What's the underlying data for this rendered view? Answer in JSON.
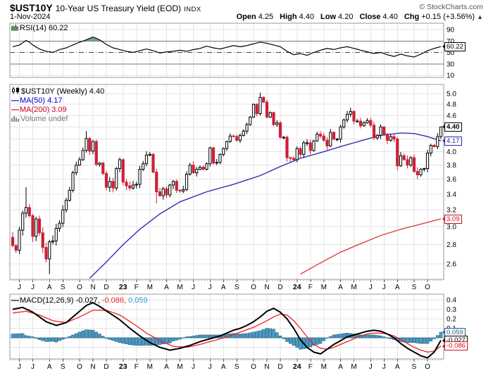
{
  "header": {
    "symbol": "$UST10Y",
    "title": "10-Year US Treasury Yield (EOD)",
    "exchange": "INDX",
    "copyright": "© StockCharts.com",
    "date": "1-Nov-2024",
    "quote": {
      "open_label": "Open",
      "open": "4.25",
      "high_label": "High",
      "high": "4.40",
      "low_label": "Low",
      "low": "4.20",
      "close_label": "Close",
      "close": "4.40",
      "chg_label": "Chg",
      "chg": "+0.15 (+3.56%)",
      "chg_arrow": "▲"
    }
  },
  "rsi_pane": {
    "legend": "RSI(14) 60.22",
    "last_value": "60.22",
    "ticks": [
      90,
      70,
      50,
      30,
      10
    ],
    "overbought": 70,
    "midline": 50,
    "oversold": 30
  },
  "main_pane": {
    "legend_symbol": "$UST10Y (Weekly) 4.40",
    "legend_ma50": "MA(50) 4.17",
    "legend_ma200": "MA(200) 3.09",
    "legend_volume": "Volume undef",
    "box_last": "4.40",
    "box_ma50": "4.17",
    "box_ma200": "3.09",
    "tick_labels": [
      5.0,
      4.8,
      4.6,
      4.0,
      3.8,
      3.6,
      3.4,
      3.2,
      3.0,
      2.8,
      2.6
    ],
    "grid_min": 2.6,
    "grid_max": 5.0,
    "grid_step": 0.2
  },
  "macd_pane": {
    "legend_name": "MACD(12,26,9)",
    "legend_macd": "-0.027,",
    "legend_signal": "-0.086,",
    "legend_hist": "0.059",
    "box_hist": "0.059",
    "box_macd": "-0.027",
    "box_signal": "-0.086",
    "ticks": [
      0.4,
      0.3,
      0.2,
      0.1
    ]
  },
  "x_axis": {
    "months": [
      {
        "label": "J",
        "week": 2
      },
      {
        "label": "J",
        "week": 6
      },
      {
        "label": "A",
        "week": 11
      },
      {
        "label": "S",
        "week": 15
      },
      {
        "label": "O",
        "week": 20
      },
      {
        "label": "N",
        "week": 24
      },
      {
        "label": "D",
        "week": 28
      },
      {
        "label": "23",
        "week": 33,
        "year": true
      },
      {
        "label": "F",
        "week": 37
      },
      {
        "label": "M",
        "week": 41
      },
      {
        "label": "A",
        "week": 46
      },
      {
        "label": "M",
        "week": 50
      },
      {
        "label": "J",
        "week": 54
      },
      {
        "label": "J",
        "week": 59
      },
      {
        "label": "A",
        "week": 63
      },
      {
        "label": "S",
        "week": 67
      },
      {
        "label": "O",
        "week": 72
      },
      {
        "label": "N",
        "week": 76
      },
      {
        "label": "D",
        "week": 80
      },
      {
        "label": "24",
        "week": 85,
        "year": true
      },
      {
        "label": "F",
        "week": 89
      },
      {
        "label": "M",
        "week": 93
      },
      {
        "label": "A",
        "week": 98
      },
      {
        "label": "M",
        "week": 102
      },
      {
        "label": "J",
        "week": 107
      },
      {
        "label": "J",
        "week": 111
      },
      {
        "label": "A",
        "week": 115
      },
      {
        "label": "S",
        "week": 120
      },
      {
        "label": "O",
        "week": 124
      }
    ]
  },
  "colors": {
    "up_candle": "#ffffff",
    "up_outline": "#000000",
    "down_candle": "#cc2039",
    "ma50": "#3030b0",
    "ma200": "#dd4450",
    "macd_line": "#000000",
    "signal_line": "#ee2222",
    "hist_fill": "#4f9bc2",
    "hist_stroke": "#1b5f86",
    "rsi_line": "#000000",
    "rsi_fill": "#7da283",
    "legend_blue": "#0000cc",
    "legend_red": "#cc0022",
    "legend_hist_blue": "#2f9ad4",
    "grid": "#e4e4e4",
    "grid_strong": "#777777",
    "pane_border": "#999999",
    "arrow_green": "#006600",
    "gray_text": "#777777"
  },
  "chart_data": {
    "type": "candlestick",
    "title": "$UST10Y 10-Year US Treasury Yield (EOD) — Weekly with RSI(14), MA(50), MA(200), MACD(12,26,9)",
    "x_range": "May 2022 – Nov 2024 (weekly)",
    "y_scale": "log",
    "y_axis": {
      "top_value": 5.18,
      "bottom_value": 2.45
    },
    "last_bar": {
      "open": 4.25,
      "high": 4.4,
      "low": 4.2,
      "close": 4.4,
      "change": "+0.15 (+3.56%)"
    },
    "first_open": 2.88,
    "weekly_closes": [
      2.79,
      2.74,
      2.96,
      3.16,
      3.23,
      3.13,
      2.89,
      3.09,
      2.93,
      2.77,
      2.65,
      2.83,
      2.84,
      2.98,
      3.04,
      3.2,
      3.32,
      3.45,
      3.69,
      3.8,
      3.88,
      4.02,
      4.21,
      4.01,
      4.16,
      3.81,
      3.83,
      3.68,
      3.49,
      3.57,
      3.48,
      3.75,
      3.88,
      3.56,
      3.51,
      3.48,
      3.52,
      3.53,
      3.74,
      3.82,
      3.95,
      3.96,
      3.7,
      3.43,
      3.38,
      3.47,
      3.39,
      3.52,
      3.57,
      3.45,
      3.44,
      3.46,
      3.67,
      3.8,
      3.69,
      3.74,
      3.77,
      3.74,
      3.82,
      4.06,
      3.83,
      3.84,
      3.96,
      4.05,
      4.16,
      4.25,
      4.24,
      4.18,
      4.26,
      4.33,
      4.44,
      4.57,
      4.8,
      4.63,
      4.93,
      4.84,
      4.57,
      4.65,
      4.44,
      4.47,
      4.23,
      4.23,
      3.91,
      3.9,
      3.88,
      4.05,
      3.96,
      4.14,
      4.14,
      4.02,
      4.17,
      4.28,
      4.25,
      4.18,
      4.09,
      4.31,
      4.2,
      4.2,
      4.4,
      4.52,
      4.62,
      4.67,
      4.5,
      4.5,
      4.42,
      4.47,
      4.51,
      4.43,
      4.22,
      4.26,
      4.4,
      4.28,
      4.18,
      4.24,
      4.2,
      3.79,
      3.94,
      3.88,
      3.8,
      3.91,
      3.71,
      3.66,
      3.74,
      3.75,
      3.98,
      4.1,
      4.08,
      4.24,
      4.4
    ],
    "hl_overrides": {
      "4": {
        "h": 3.49
      },
      "11": {
        "l": 2.5
      },
      "22": {
        "h": 4.33
      },
      "43": {
        "l": 3.28
      },
      "74": {
        "h": 5.02
      },
      "101": {
        "h": 4.74
      },
      "121": {
        "l": 3.6
      },
      "128": {
        "h": 4.4,
        "l": 4.2
      }
    },
    "ma50": [
      [
        23,
        2.46
      ],
      [
        28,
        2.62
      ],
      [
        33,
        2.8
      ],
      [
        38,
        2.97
      ],
      [
        44,
        3.15
      ],
      [
        50,
        3.3
      ],
      [
        58,
        3.43
      ],
      [
        66,
        3.53
      ],
      [
        74,
        3.65
      ],
      [
        80,
        3.78
      ],
      [
        86,
        3.9
      ],
      [
        93,
        4.0
      ],
      [
        98,
        4.08
      ],
      [
        104,
        4.17
      ],
      [
        110,
        4.26
      ],
      [
        116,
        4.3
      ],
      [
        120,
        4.29
      ],
      [
        124,
        4.24
      ],
      [
        128,
        4.17
      ]
    ],
    "ma200": [
      [
        86,
        2.5
      ],
      [
        92,
        2.61
      ],
      [
        98,
        2.72
      ],
      [
        104,
        2.81
      ],
      [
        110,
        2.9
      ],
      [
        116,
        2.97
      ],
      [
        122,
        3.03
      ],
      [
        128,
        3.09
      ]
    ],
    "rsi": [
      [
        0,
        60
      ],
      [
        2,
        63
      ],
      [
        4,
        71
      ],
      [
        5,
        68
      ],
      [
        6,
        63
      ],
      [
        8,
        56
      ],
      [
        10,
        52
      ],
      [
        12,
        50
      ],
      [
        14,
        55
      ],
      [
        16,
        58
      ],
      [
        18,
        63
      ],
      [
        20,
        68
      ],
      [
        22,
        72
      ],
      [
        24,
        77
      ],
      [
        26,
        72
      ],
      [
        28,
        64
      ],
      [
        30,
        58
      ],
      [
        32,
        55
      ],
      [
        34,
        52
      ],
      [
        36,
        50
      ],
      [
        38,
        53
      ],
      [
        40,
        56
      ],
      [
        42,
        53
      ],
      [
        44,
        49
      ],
      [
        46,
        51
      ],
      [
        48,
        52
      ],
      [
        50,
        54
      ],
      [
        52,
        52
      ],
      [
        54,
        55
      ],
      [
        56,
        57
      ],
      [
        58,
        61
      ],
      [
        60,
        58
      ],
      [
        62,
        56
      ],
      [
        64,
        59
      ],
      [
        66,
        62
      ],
      [
        68,
        60
      ],
      [
        70,
        62
      ],
      [
        72,
        65
      ],
      [
        74,
        68
      ],
      [
        76,
        66
      ],
      [
        78,
        63
      ],
      [
        80,
        60
      ],
      [
        82,
        52
      ],
      [
        84,
        46
      ],
      [
        86,
        48
      ],
      [
        88,
        45
      ],
      [
        90,
        50
      ],
      [
        92,
        54
      ],
      [
        94,
        57
      ],
      [
        96,
        55
      ],
      [
        98,
        58
      ],
      [
        100,
        60
      ],
      [
        102,
        57
      ],
      [
        104,
        54
      ],
      [
        106,
        51
      ],
      [
        108,
        48
      ],
      [
        110,
        50
      ],
      [
        112,
        46
      ],
      [
        114,
        43
      ],
      [
        116,
        47
      ],
      [
        118,
        44
      ],
      [
        120,
        42
      ],
      [
        122,
        47
      ],
      [
        124,
        53
      ],
      [
        126,
        57
      ],
      [
        128,
        60.22
      ]
    ],
    "macd_line": [
      [
        0,
        0.3
      ],
      [
        3,
        0.32
      ],
      [
        6,
        0.27
      ],
      [
        10,
        0.17
      ],
      [
        13,
        0.13
      ],
      [
        16,
        0.16
      ],
      [
        19,
        0.25
      ],
      [
        22,
        0.34
      ],
      [
        24,
        0.37
      ],
      [
        26,
        0.33
      ],
      [
        29,
        0.26
      ],
      [
        32,
        0.19
      ],
      [
        35,
        0.1
      ],
      [
        38,
        0.02
      ],
      [
        41,
        -0.05
      ],
      [
        44,
        -0.1
      ],
      [
        47,
        -0.13
      ],
      [
        50,
        -0.11
      ],
      [
        53,
        -0.08
      ],
      [
        56,
        -0.04
      ],
      [
        58,
        -0.02
      ],
      [
        60,
        0.0
      ],
      [
        62,
        0.02
      ],
      [
        64,
        0.05
      ],
      [
        66,
        0.08
      ],
      [
        68,
        0.1
      ],
      [
        70,
        0.13
      ],
      [
        72,
        0.17
      ],
      [
        74,
        0.22
      ],
      [
        76,
        0.28
      ],
      [
        78,
        0.31
      ],
      [
        80,
        0.27
      ],
      [
        82,
        0.2
      ],
      [
        84,
        0.1
      ],
      [
        86,
        -0.02
      ],
      [
        88,
        -0.1
      ],
      [
        90,
        -0.15
      ],
      [
        92,
        -0.17
      ],
      [
        94,
        -0.12
      ],
      [
        96,
        -0.07
      ],
      [
        98,
        -0.03
      ],
      [
        100,
        0.01
      ],
      [
        102,
        0.03
      ],
      [
        104,
        0.05
      ],
      [
        106,
        0.07
      ],
      [
        108,
        0.08
      ],
      [
        110,
        0.07
      ],
      [
        112,
        0.04
      ],
      [
        114,
        0.0
      ],
      [
        116,
        -0.06
      ],
      [
        118,
        -0.11
      ],
      [
        120,
        -0.15
      ],
      [
        122,
        -0.19
      ],
      [
        124,
        -0.21
      ],
      [
        126,
        -0.15
      ],
      [
        128,
        -0.027
      ]
    ],
    "signal_line": [
      [
        0,
        0.26
      ],
      [
        4,
        0.28
      ],
      [
        8,
        0.24
      ],
      [
        12,
        0.18
      ],
      [
        16,
        0.16
      ],
      [
        20,
        0.22
      ],
      [
        24,
        0.29
      ],
      [
        28,
        0.29
      ],
      [
        32,
        0.24
      ],
      [
        36,
        0.15
      ],
      [
        40,
        0.05
      ],
      [
        44,
        -0.03
      ],
      [
        48,
        -0.09
      ],
      [
        52,
        -0.1
      ],
      [
        56,
        -0.07
      ],
      [
        60,
        -0.03
      ],
      [
        64,
        0.01
      ],
      [
        68,
        0.06
      ],
      [
        72,
        0.11
      ],
      [
        76,
        0.18
      ],
      [
        78,
        0.22
      ],
      [
        80,
        0.25
      ],
      [
        82,
        0.24
      ],
      [
        84,
        0.18
      ],
      [
        86,
        0.1
      ],
      [
        88,
        0.01
      ],
      [
        90,
        -0.07
      ],
      [
        92,
        -0.11
      ],
      [
        94,
        -0.12
      ],
      [
        96,
        -0.1
      ],
      [
        98,
        -0.07
      ],
      [
        100,
        -0.04
      ],
      [
        102,
        -0.01
      ],
      [
        104,
        0.02
      ],
      [
        106,
        0.04
      ],
      [
        108,
        0.05
      ],
      [
        110,
        0.05
      ],
      [
        112,
        0.04
      ],
      [
        114,
        0.02
      ],
      [
        116,
        -0.02
      ],
      [
        118,
        -0.06
      ],
      [
        120,
        -0.1
      ],
      [
        122,
        -0.13
      ],
      [
        124,
        -0.15
      ],
      [
        126,
        -0.14
      ],
      [
        128,
        -0.086
      ]
    ],
    "last_values": {
      "rsi": 60.22,
      "close": 4.4,
      "ma50": 4.17,
      "ma200": 3.09,
      "macd": -0.027,
      "signal": -0.086,
      "histogram": 0.059
    }
  }
}
